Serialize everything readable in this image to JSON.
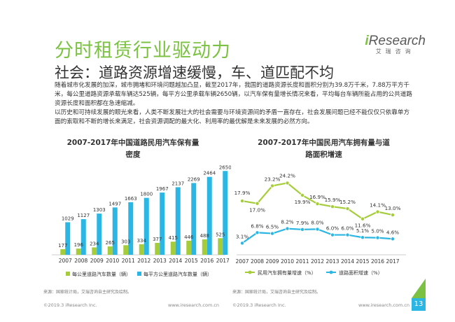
{
  "header": {
    "title": "分时租赁行业驱动力",
    "subtitle": "社会：道路资源增速缓慢，车、道匹配不均",
    "logo_brand": "Research",
    "logo_i": "i",
    "logo_sub": "艾瑞咨询"
  },
  "body": {
    "p1": "随着城市化发展的加深，城市拥堵和环境问题越加凸显，截至2017年，我国的道路资源长度和面积分别为39.8万千米，7.88万平方千米，每公里道路资源承载车辆达525辆，每平方公里承载车辆2650辆，以汽车保有量增长情况来看，平均每台车辆所能占用的公共道路资源长度和面积都在急速缩减。",
    "p2": "以历史和可持续发展的眼光来看，人类不断发展壮大的社会需要与环境资源间的矛盾一直存在，社会发展问题已经不能仅仅只依靠单方面的索取和不断的增长来满足，社会资源调配的最大化、利用率的最优解是未来发展的必然方向。"
  },
  "left_chart_title_1": "2007-2017年中国道路民用汽车保有量",
  "left_chart_title_2": "密度",
  "right_chart_title_1": "2007-2017年中国民用汽车拥有量与道",
  "right_chart_title_2": "路面积增速",
  "footnotes": {
    "left": "来源：国家统计局，艾瑞咨询自主研究及绘制。",
    "right": "来源：国家统计局，艾瑞咨询自主研究及绘制。"
  },
  "footer": {
    "left_copy": "©2019.3 iResearch Inc.",
    "left_url": "www.iresearch.com.cn",
    "right_copy": "©2019.3 iResearch Inc.",
    "right_url": "www.iresearch.com.cn",
    "page": "13"
  },
  "colors": {
    "green": "#a5cd39",
    "blue": "#2bb6e3",
    "title_green": "#7cc242"
  },
  "chart_data": [
    {
      "type": "bar",
      "title": "2007-2017年中国道路民用汽车保有量密度",
      "categories": [
        "2007",
        "2008",
        "2009",
        "2010",
        "2011",
        "2012",
        "2013",
        "2014",
        "2015",
        "2016",
        "2017"
      ],
      "series": [
        {
          "name": "每公里道路汽车数量（辆）",
          "color": "#a5cd39",
          "values": [
            177,
            196,
            234,
            265,
            303,
            334,
            377,
            415,
            446,
            488,
            525
          ]
        },
        {
          "name": "每平方公里道路汽车数量（辆）",
          "color": "#2bb6e3",
          "values": [
            1029,
            1127,
            1303,
            1497,
            1663,
            1800,
            1967,
            2137,
            2269,
            2464,
            2650
          ]
        }
      ]
    },
    {
      "type": "line",
      "title": "2007-2017年中国民用汽车拥有量与道路面积增速",
      "categories": [
        "2007",
        "2008",
        "2009",
        "2010",
        "2011",
        "2012",
        "2013",
        "2014",
        "2015",
        "2016",
        "2017"
      ],
      "series": [
        {
          "name": "民用汽车拥有量增速（%）",
          "color": "#a5cd39",
          "values": [
            17.9,
            17.0,
            23.2,
            24.2,
            19.9,
            16.9,
            15.9,
            15.2,
            11.6,
            14.1,
            13.0
          ],
          "labels": [
            "17.9%",
            "17.0%",
            "23.2%",
            "24.2%",
            "19.9%",
            "16.9%",
            "15.9%",
            "15.2%",
            "11.6%",
            "14.1%",
            "13.0%"
          ]
        },
        {
          "name": "道路面积增速（%）",
          "color": "#2bb6e3",
          "values": [
            3.1,
            6.8,
            6.5,
            8.2,
            7.9,
            8.0,
            6.0,
            6.0,
            5.1,
            5.0,
            4.6
          ],
          "labels": [
            "3.1%",
            "6.8%",
            "6.5%",
            "8.2%",
            "7.9%",
            "8.0%",
            "6.0%",
            "6.0%",
            "5.1%",
            "5.0%",
            "4.6%"
          ]
        }
      ]
    }
  ]
}
